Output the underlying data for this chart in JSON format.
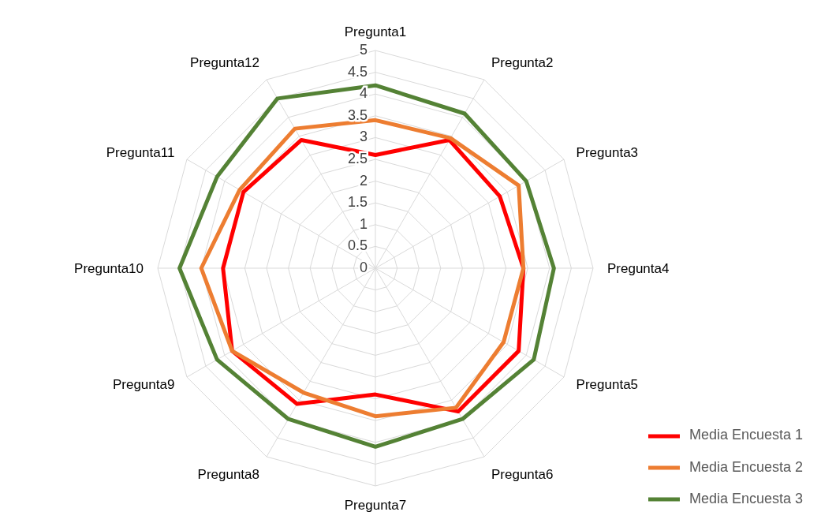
{
  "chart_data": {
    "type": "radar",
    "categories": [
      "Pregunta1",
      "Pregunta2",
      "Pregunta3",
      "Pregunta4",
      "Pregunta5",
      "Pregunta6",
      "Pregunta7",
      "Pregunta8",
      "Pregunta9",
      "Pregunta10",
      "Pregunta11",
      "Pregunta12"
    ],
    "series": [
      {
        "name": "Media Encuesta 1",
        "color": "#ff0000",
        "values": [
          2.6,
          3.4,
          3.3,
          3.4,
          3.8,
          3.8,
          2.9,
          3.6,
          3.8,
          3.5,
          3.5,
          3.4
        ]
      },
      {
        "name": "Media Encuesta 2",
        "color": "#ed7d31",
        "values": [
          3.4,
          3.45,
          3.8,
          3.4,
          3.4,
          3.7,
          3.4,
          3.3,
          3.8,
          4.0,
          3.6,
          3.7
        ]
      },
      {
        "name": "Media Encuesta 3",
        "color": "#548235",
        "values": [
          4.2,
          4.1,
          4.0,
          4.1,
          4.2,
          4.0,
          4.1,
          4.0,
          4.2,
          4.5,
          4.2,
          4.5
        ]
      }
    ],
    "ylim": [
      0,
      5
    ],
    "yticks": [
      0,
      0.5,
      1,
      1.5,
      2,
      2.5,
      3,
      3.5,
      4,
      4.5,
      5
    ],
    "grid": true,
    "legend": "bottom right",
    "marker": "none",
    "line_style": "solid"
  }
}
